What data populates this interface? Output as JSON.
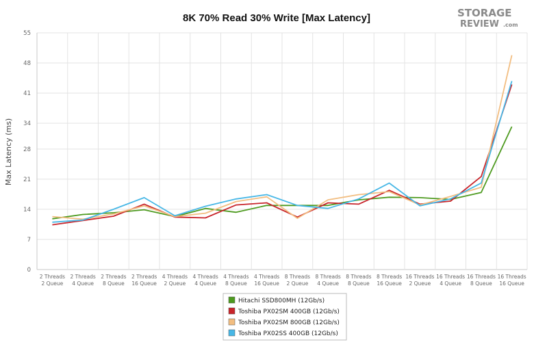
{
  "chart_data": {
    "type": "line",
    "title": "8K 70% Read 30% Write [Max Latency]",
    "xlabel": "",
    "ylabel": "Max Latency (ms)",
    "ylim": [
      0,
      55
    ],
    "yticks": [
      0,
      7,
      14,
      21,
      28,
      34,
      41,
      48,
      55
    ],
    "grid": true,
    "legend_position": "bottom",
    "categories": [
      [
        "2 Threads",
        "2 Queue"
      ],
      [
        "2 Threads",
        "4 Queue"
      ],
      [
        "2 Threads",
        "8 Queue"
      ],
      [
        "2 Threads",
        "16 Queue"
      ],
      [
        "4 Threads",
        "2 Queue"
      ],
      [
        "4 Threads",
        "4 Queue"
      ],
      [
        "4 Threads",
        "8 Queue"
      ],
      [
        "4 Threads",
        "16 Queue"
      ],
      [
        "8 Threads",
        "2 Queue"
      ],
      [
        "8 Threads",
        "4 Queue"
      ],
      [
        "8 Threads",
        "8 Queue"
      ],
      [
        "8 Threads",
        "16 Queue"
      ],
      [
        "16 Threads",
        "2 Queue"
      ],
      [
        "16 Threads",
        "4 Queue"
      ],
      [
        "16 Threads",
        "8 Queue"
      ],
      [
        "16 Threads",
        "16 Queue"
      ]
    ],
    "series": [
      {
        "name": "Hitachi SSD800MH (12Gb/s)",
        "color": "#4d9a1f",
        "values": [
          11.8,
          12.8,
          13.2,
          13.9,
          12.3,
          14.2,
          13.3,
          14.9,
          14.9,
          14.9,
          16.2,
          16.8,
          16.7,
          16.3,
          17.9,
          33.2
        ]
      },
      {
        "name": "Toshiba PX02SM 400GB (12Gb/s)",
        "color": "#c8242b",
        "values": [
          10.4,
          11.4,
          12.4,
          15.2,
          12.2,
          12.0,
          15.0,
          15.5,
          12.2,
          15.5,
          15.2,
          18.4,
          15.2,
          15.9,
          21.6,
          43.0
        ]
      },
      {
        "name": "Toshiba PX02SM 800GB (12Gb/s)",
        "color": "#f2bd80",
        "values": [
          12.3,
          11.7,
          12.9,
          14.8,
          12.3,
          13.1,
          15.8,
          16.9,
          11.9,
          16.2,
          17.4,
          18.1,
          15.0,
          17.0,
          19.1,
          49.8
        ]
      },
      {
        "name": "Toshiba PX02SS 400GB (12Gb/s)",
        "color": "#47b7e6",
        "values": [
          11.0,
          11.5,
          14.0,
          16.7,
          12.5,
          14.7,
          16.4,
          17.4,
          14.9,
          14.2,
          16.4,
          20.1,
          14.8,
          16.4,
          20.1,
          43.8
        ]
      }
    ]
  },
  "logo": {
    "line1": "STORAGE",
    "line2": "REVIEW",
    "suffix": ".com"
  }
}
